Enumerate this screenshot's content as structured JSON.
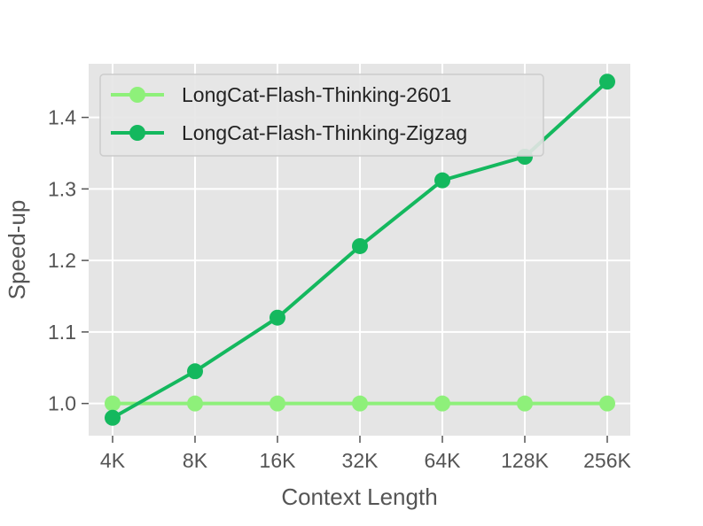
{
  "chart_data": {
    "type": "line",
    "title": "",
    "xlabel": "Context Length",
    "ylabel": "Speed-up",
    "categories": [
      "4K",
      "8K",
      "16K",
      "32K",
      "64K",
      "128K",
      "256K"
    ],
    "yticks": [
      "1.0",
      "1.1",
      "1.2",
      "1.3",
      "1.4"
    ],
    "ylim": [
      0.955,
      1.475
    ],
    "grid": true,
    "legend_position": "top-left",
    "series": [
      {
        "name": "LongCat-Flash-Thinking-2601",
        "color": "#8ef07a",
        "values": [
          1.0,
          1.0,
          1.0,
          1.0,
          1.0,
          1.0,
          1.0
        ]
      },
      {
        "name": "LongCat-Flash-Thinking-Zigzag",
        "color": "#14b85e",
        "values": [
          0.98,
          1.045,
          1.12,
          1.22,
          1.312,
          1.345,
          1.45
        ]
      }
    ]
  }
}
